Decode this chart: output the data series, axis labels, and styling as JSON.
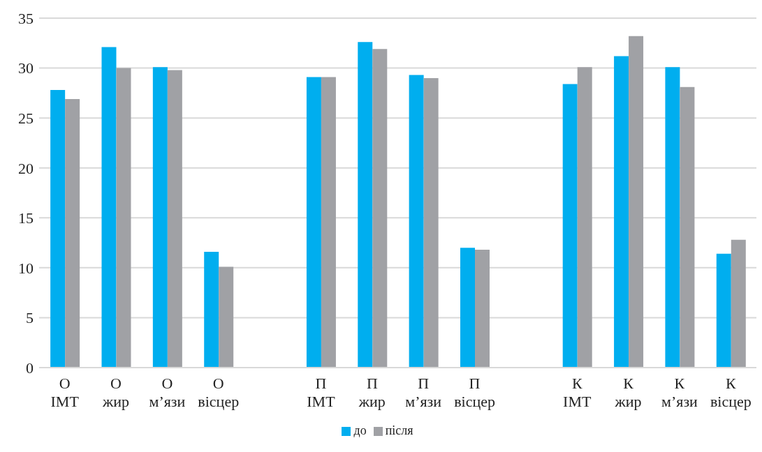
{
  "chart_data": {
    "type": "bar",
    "categories": [
      "О\nІМТ",
      "О\nжир",
      "О\nм’язи",
      "О\nвісцер",
      null,
      "П\nІМТ",
      "П\nжир",
      "П\nм’язи",
      "П\nвісцер",
      null,
      "К\nІМТ",
      "К\nжир",
      "К\nм’язи",
      "К\nвісцер"
    ],
    "series": [
      {
        "name": "до",
        "color": "#00aeef",
        "values": [
          27.8,
          32.1,
          30.1,
          11.6,
          null,
          29.1,
          32.6,
          29.3,
          12.0,
          null,
          28.4,
          31.2,
          30.1,
          11.4
        ]
      },
      {
        "name": "після",
        "color": "#a0a1a5",
        "values": [
          26.9,
          30.0,
          29.8,
          10.1,
          null,
          29.1,
          31.9,
          29.0,
          11.8,
          null,
          30.1,
          33.2,
          28.1,
          12.8
        ]
      }
    ],
    "ylim": [
      0,
      35
    ],
    "yticks": [
      0,
      5,
      10,
      15,
      20,
      25,
      30,
      35
    ],
    "grid": "y",
    "legend": "bottom"
  }
}
